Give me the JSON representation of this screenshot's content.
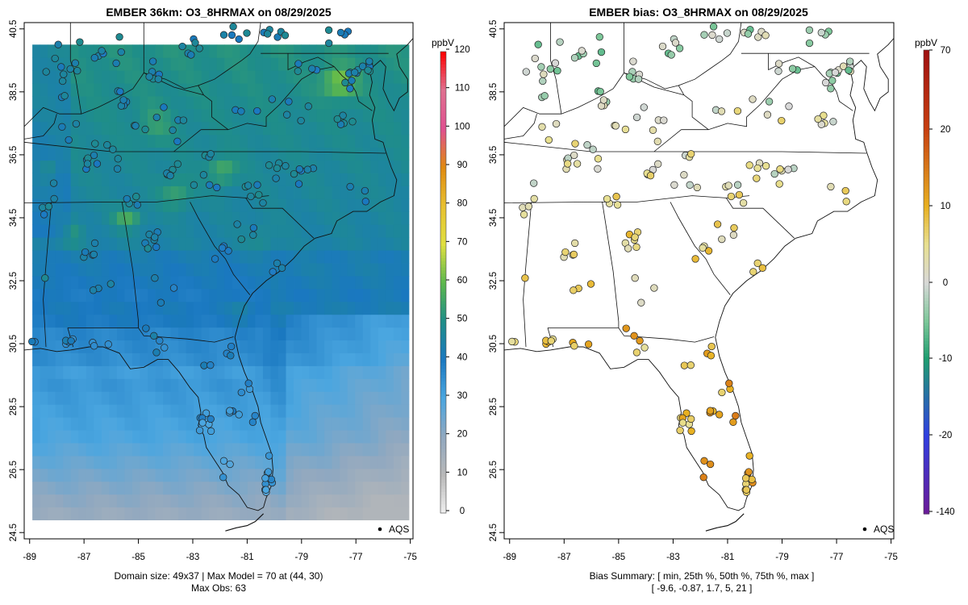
{
  "left_panel": {
    "title": "EMBER 36km: O3_8HRMAX on 08/29/2025",
    "colorbar_unit": "ppbV",
    "colorbar_ticks": [
      "0",
      "10",
      "20",
      "30",
      "40",
      "50",
      "60",
      "70",
      "80",
      "90",
      "100",
      "110",
      "120"
    ],
    "x_ticks": [
      "-89",
      "-87",
      "-85",
      "-83",
      "-81",
      "-79",
      "-77",
      "-75"
    ],
    "y_ticks": [
      "24.5",
      "26.5",
      "28.5",
      "30.5",
      "32.5",
      "34.5",
      "36.5",
      "38.5",
      "40.5"
    ],
    "legend_label": "AQS",
    "footer_line1": "Domain size: 49x37 | Max Model = 70 at (44, 30)",
    "footer_line2": "Max Obs: 63"
  },
  "right_panel": {
    "title": "EMBER bias: O3_8HRMAX on 08/29/2025",
    "colorbar_unit": "ppbV",
    "colorbar_ticks": [
      "70",
      "20",
      "10",
      "0",
      "-10",
      "-20",
      "-140"
    ],
    "x_ticks": [
      "-89",
      "-87",
      "-85",
      "-83",
      "-81",
      "-79",
      "-77",
      "-75"
    ],
    "y_ticks": [
      "24.5",
      "26.5",
      "28.5",
      "30.5",
      "32.5",
      "34.5",
      "36.5",
      "38.5",
      "40.5"
    ],
    "legend_label": "AQS",
    "footer_line1": "Bias Summary: [ min, 25th %, 50th %, 75th %, max ]",
    "footer_line2": "[ -9.6,   -0.87,   1.7,   5,   21 ]"
  },
  "map_data": {
    "lon_range": [
      -89.2,
      -74.9
    ],
    "lat_range": [
      24.3,
      40.7
    ],
    "model_domain": {
      "columns": 49,
      "rows": 37,
      "max_model_ppbv": 70,
      "max_obs_ppbv": 63
    },
    "bias_summary_ppbv": {
      "min": -9.6,
      "p25": -0.87,
      "p50": 1.7,
      "p75": 5,
      "max": 21
    },
    "concentration_scale_ppbv": [
      0,
      120
    ],
    "bias_scale_ppbv": [
      -140,
      70
    ],
    "colors": {
      "conc_low": "#e8e8e8",
      "conc_mid": "#3a8fd0",
      "conc_green": "#28a070",
      "conc_high": "#e8e020",
      "conc_max": "#ff0000",
      "bias_neg": "#7b1fa2",
      "bias_zero": "#d8d8d8",
      "bias_pos": "#e8c020",
      "bias_max": "#a01010"
    }
  }
}
